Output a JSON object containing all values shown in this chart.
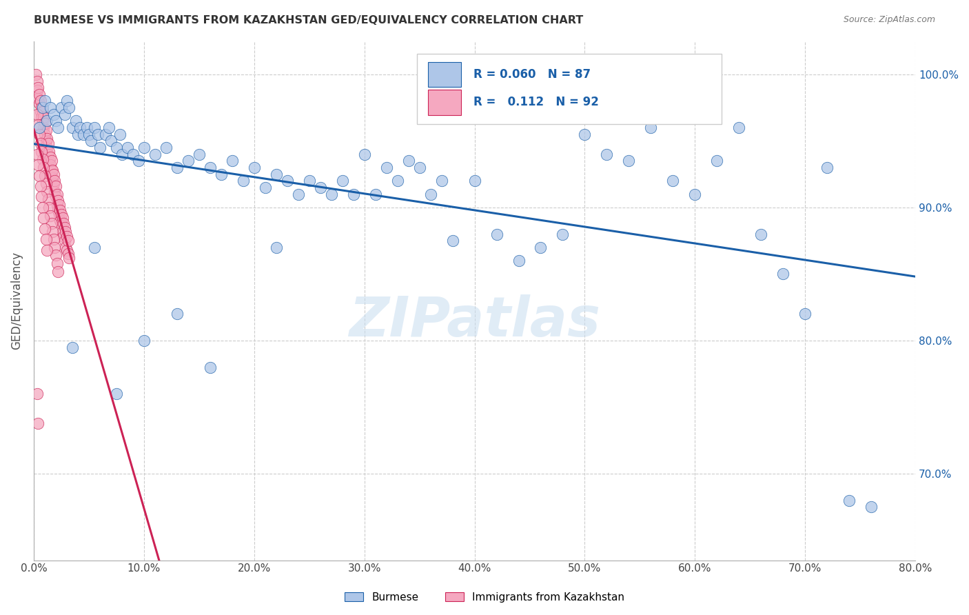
{
  "title": "BURMESE VS IMMIGRANTS FROM KAZAKHSTAN GED/EQUIVALENCY CORRELATION CHART",
  "source": "Source: ZipAtlas.com",
  "ylabel": "GED/Equivalency",
  "ytick_vals": [
    0.7,
    0.8,
    0.9,
    1.0
  ],
  "xlim": [
    0.0,
    0.8
  ],
  "ylim": [
    0.635,
    1.025
  ],
  "legend_label1": "Burmese",
  "legend_label2": "Immigrants from Kazakhstan",
  "R1": 0.06,
  "N1": 87,
  "R2": 0.112,
  "N2": 92,
  "color1": "#aec6e8",
  "color2": "#f5a8c0",
  "line_color1": "#1a5fa8",
  "line_color2": "#cc2255",
  "watermark_color": "#c8ddf0",
  "blue_x": [
    0.005,
    0.008,
    0.01,
    0.012,
    0.015,
    0.018,
    0.02,
    0.022,
    0.025,
    0.028,
    0.03,
    0.032,
    0.035,
    0.038,
    0.04,
    0.042,
    0.045,
    0.048,
    0.05,
    0.052,
    0.055,
    0.058,
    0.06,
    0.065,
    0.068,
    0.07,
    0.075,
    0.078,
    0.08,
    0.085,
    0.09,
    0.095,
    0.1,
    0.11,
    0.12,
    0.13,
    0.14,
    0.15,
    0.16,
    0.17,
    0.18,
    0.19,
    0.2,
    0.21,
    0.22,
    0.23,
    0.24,
    0.25,
    0.26,
    0.27,
    0.28,
    0.29,
    0.3,
    0.31,
    0.32,
    0.33,
    0.34,
    0.35,
    0.36,
    0.37,
    0.38,
    0.4,
    0.42,
    0.44,
    0.46,
    0.48,
    0.5,
    0.52,
    0.54,
    0.56,
    0.58,
    0.6,
    0.62,
    0.64,
    0.66,
    0.68,
    0.7,
    0.72,
    0.74,
    0.76,
    0.035,
    0.055,
    0.075,
    0.1,
    0.13,
    0.16,
    0.22
  ],
  "blue_y": [
    0.96,
    0.975,
    0.98,
    0.965,
    0.975,
    0.97,
    0.965,
    0.96,
    0.975,
    0.97,
    0.98,
    0.975,
    0.96,
    0.965,
    0.955,
    0.96,
    0.955,
    0.96,
    0.955,
    0.95,
    0.96,
    0.955,
    0.945,
    0.955,
    0.96,
    0.95,
    0.945,
    0.955,
    0.94,
    0.945,
    0.94,
    0.935,
    0.945,
    0.94,
    0.945,
    0.93,
    0.935,
    0.94,
    0.93,
    0.925,
    0.935,
    0.92,
    0.93,
    0.915,
    0.925,
    0.92,
    0.91,
    0.92,
    0.915,
    0.91,
    0.92,
    0.91,
    0.94,
    0.91,
    0.93,
    0.92,
    0.935,
    0.93,
    0.91,
    0.92,
    0.875,
    0.92,
    0.88,
    0.86,
    0.87,
    0.88,
    0.955,
    0.94,
    0.935,
    0.96,
    0.92,
    0.91,
    0.935,
    0.96,
    0.88,
    0.85,
    0.82,
    0.93,
    0.68,
    0.675,
    0.795,
    0.87,
    0.76,
    0.8,
    0.82,
    0.78,
    0.87
  ],
  "pink_x": [
    0.002,
    0.003,
    0.003,
    0.004,
    0.004,
    0.005,
    0.005,
    0.006,
    0.006,
    0.007,
    0.007,
    0.008,
    0.008,
    0.009,
    0.009,
    0.01,
    0.01,
    0.011,
    0.011,
    0.012,
    0.012,
    0.013,
    0.013,
    0.014,
    0.014,
    0.015,
    0.015,
    0.016,
    0.016,
    0.017,
    0.017,
    0.018,
    0.018,
    0.019,
    0.019,
    0.02,
    0.02,
    0.021,
    0.021,
    0.022,
    0.022,
    0.023,
    0.023,
    0.024,
    0.024,
    0.025,
    0.025,
    0.026,
    0.026,
    0.027,
    0.027,
    0.028,
    0.028,
    0.029,
    0.029,
    0.03,
    0.03,
    0.031,
    0.031,
    0.032,
    0.003,
    0.004,
    0.005,
    0.006,
    0.007,
    0.008,
    0.009,
    0.01,
    0.011,
    0.012,
    0.013,
    0.014,
    0.015,
    0.016,
    0.017,
    0.018,
    0.019,
    0.02,
    0.021,
    0.022,
    0.003,
    0.004,
    0.005,
    0.006,
    0.007,
    0.008,
    0.009,
    0.01,
    0.011,
    0.012,
    0.003,
    0.004
  ],
  "pink_y": [
    1.0,
    0.995,
    0.988,
    0.982,
    0.99,
    0.978,
    0.985,
    0.972,
    0.98,
    0.968,
    0.975,
    0.965,
    0.972,
    0.96,
    0.968,
    0.955,
    0.963,
    0.95,
    0.958,
    0.945,
    0.952,
    0.94,
    0.948,
    0.935,
    0.942,
    0.938,
    0.932,
    0.928,
    0.935,
    0.922,
    0.928,
    0.918,
    0.925,
    0.912,
    0.92,
    0.908,
    0.916,
    0.902,
    0.91,
    0.898,
    0.905,
    0.895,
    0.902,
    0.89,
    0.898,
    0.888,
    0.895,
    0.882,
    0.892,
    0.878,
    0.888,
    0.875,
    0.885,
    0.87,
    0.882,
    0.868,
    0.878,
    0.865,
    0.875,
    0.862,
    0.97,
    0.962,
    0.955,
    0.948,
    0.942,
    0.936,
    0.93,
    0.924,
    0.918,
    0.912,
    0.906,
    0.9,
    0.894,
    0.888,
    0.882,
    0.876,
    0.87,
    0.864,
    0.858,
    0.852,
    0.94,
    0.932,
    0.924,
    0.916,
    0.908,
    0.9,
    0.892,
    0.884,
    0.876,
    0.868,
    0.76,
    0.738
  ]
}
